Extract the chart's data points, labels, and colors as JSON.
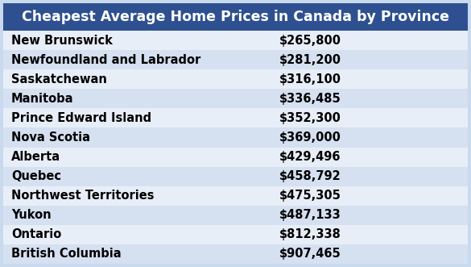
{
  "title": "Cheapest Average Home Prices in Canada by Province",
  "provinces": [
    "New Brunswick",
    "Newfoundland and Labrador",
    "Saskatchewan",
    "Manitoba",
    "Prince Edward Island",
    "Nova Scotia",
    "Alberta",
    "Quebec",
    "Northwest Territories",
    "Yukon",
    "Ontario",
    "British Columbia"
  ],
  "prices": [
    "$265,800",
    "$281,200",
    "$316,100",
    "$336,485",
    "$352,300",
    "$369,000",
    "$429,496",
    "$458,792",
    "$475,305",
    "$487,133",
    "$812,338",
    "$907,465"
  ],
  "header_bg": "#2E5090",
  "header_text": "#FFFFFF",
  "row_colors": [
    "#E8EEF7",
    "#D5E0F0"
  ],
  "row_text": "#000000",
  "outer_bg": "#C9D9EE",
  "title_fontsize": 12.5,
  "row_fontsize": 10.5
}
